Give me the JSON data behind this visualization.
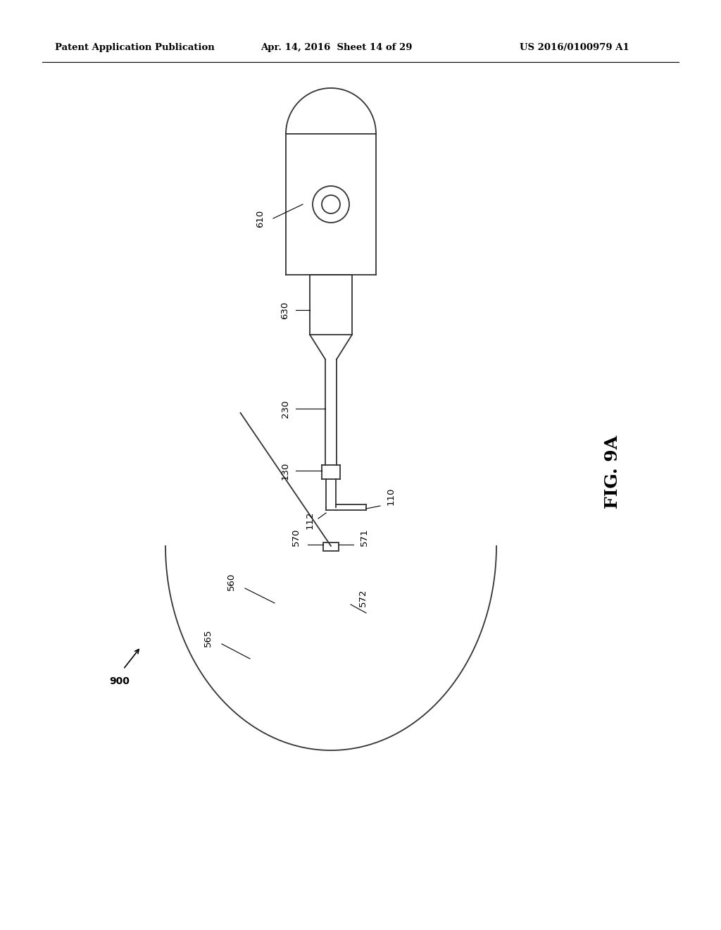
{
  "title_left": "Patent Application Publication",
  "title_mid": "Apr. 14, 2016  Sheet 14 of 29",
  "title_right": "US 2016/0100979 A1",
  "fig_label": "FIG. 9A",
  "fig_number": "900",
  "background_color": "#ffffff",
  "line_color": "#333333",
  "lw": 1.3
}
